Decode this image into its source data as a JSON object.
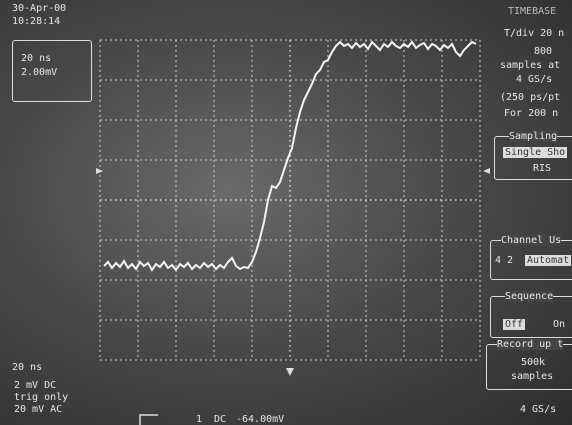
{
  "header": {
    "date": "30-Apr-00",
    "time": "10:28:14"
  },
  "scale_box": {
    "timebase": "20 ns",
    "volts": "2.00mV"
  },
  "right_panel": {
    "timebase_title": "TIMEBASE",
    "tdiv": "T/div 20 n",
    "samples_count": "800",
    "samples_at": "samples at",
    "rate": "4 GS/s",
    "ps_per_pt": "(250 ps/pt",
    "for": "For 200 n",
    "sampling_title": "Sampling",
    "single_shot": "Single Sho",
    "ris": "RIS",
    "channel_use_title": "Channel Us",
    "channel_count": "4 2",
    "automatic": "Automat",
    "sequence_title": "Sequence",
    "off": "Off",
    "on": "On",
    "record_title": "Record up t",
    "record_samples": "500k",
    "record_unit": "samples",
    "bottom_rate": "4 GS/s"
  },
  "bottom_left": {
    "timebase": "20 ns",
    "ch_volts": "2 mV  DC",
    "trig": "trig only",
    "ch2": "20 mV  AC"
  },
  "bottom": {
    "channel": "1",
    "coupling": "DC",
    "level": "-64.00mV"
  }
}
